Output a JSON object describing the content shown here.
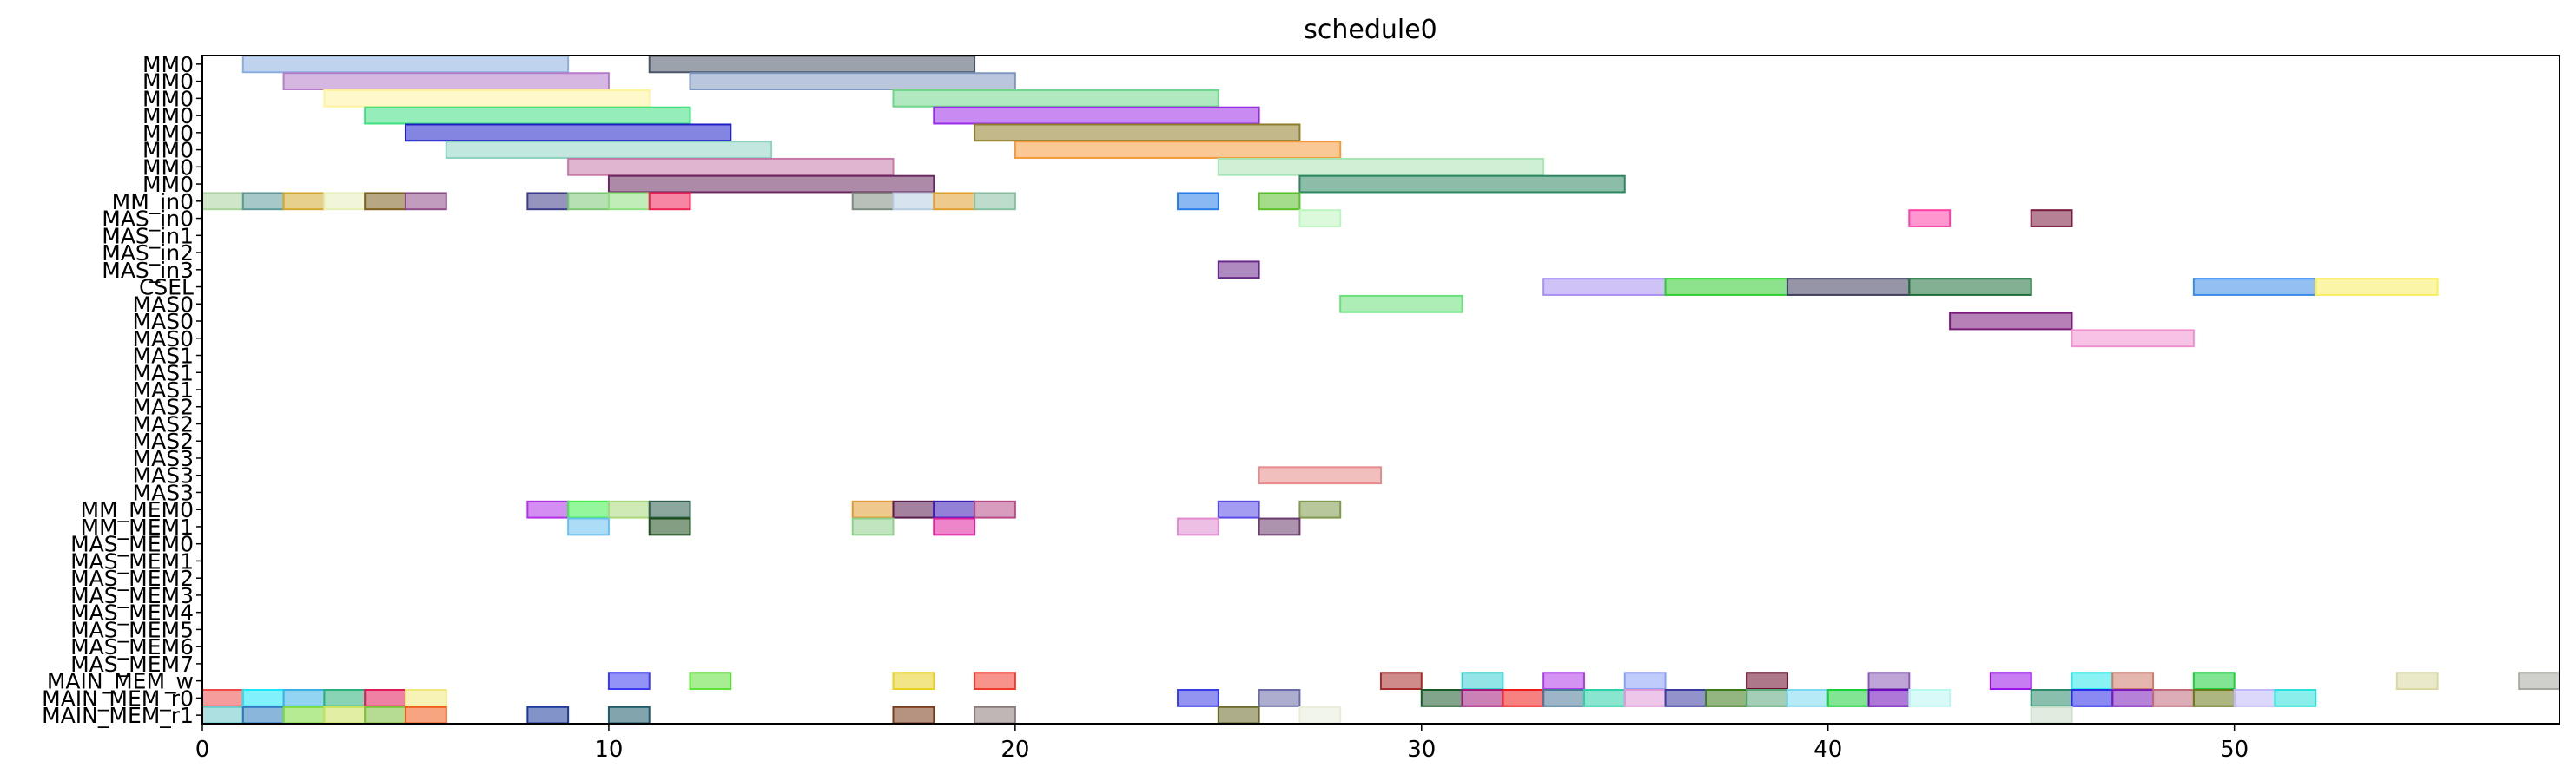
{
  "chart_data": {
    "type": "gantt",
    "title": "schedule0",
    "xlim": [
      0,
      58
    ],
    "x_ticks": [
      0,
      10,
      20,
      30,
      40,
      50
    ],
    "grid": false,
    "rows": [
      "MM0",
      "MM0",
      "MM0",
      "MM0",
      "MM0",
      "MM0",
      "MM0",
      "MM0",
      "MM_in0",
      "MAS_in0",
      "MAS_in1",
      "MAS_in2",
      "MAS_in3",
      "CSEL",
      "MAS0",
      "MAS0",
      "MAS0",
      "MAS1",
      "MAS1",
      "MAS1",
      "MAS2",
      "MAS2",
      "MAS2",
      "MAS3",
      "MAS3",
      "MAS3",
      "MM_MEM0",
      "MM_MEM1",
      "MAS_MEM0",
      "MAS_MEM1",
      "MAS_MEM2",
      "MAS_MEM3",
      "MAS_MEM4",
      "MAS_MEM5",
      "MAS_MEM6",
      "MAS_MEM7",
      "MAIN_MEM_w",
      "MAIN_MEM_r0",
      "MAIN_MEM_r1"
    ],
    "tasks": [
      {
        "row": 0,
        "start": 1,
        "end": 9,
        "color": "#8aaee0"
      },
      {
        "row": 0,
        "start": 11,
        "end": 19,
        "color": "#4a5568"
      },
      {
        "row": 1,
        "start": 2,
        "end": 10,
        "color": "#b57cc9"
      },
      {
        "row": 1,
        "start": 12,
        "end": 20,
        "color": "#7f97bf"
      },
      {
        "row": 2,
        "start": 3,
        "end": 11,
        "color": "#fff3a0"
      },
      {
        "row": 2,
        "start": 17,
        "end": 25,
        "color": "#6fd68a"
      },
      {
        "row": 3,
        "start": 4,
        "end": 12,
        "color": "#3ee07f"
      },
      {
        "row": 3,
        "start": 18,
        "end": 26,
        "color": "#9a2be8"
      },
      {
        "row": 4,
        "start": 5,
        "end": 13,
        "color": "#1f1fc8"
      },
      {
        "row": 4,
        "start": 19,
        "end": 27,
        "color": "#8f7d28"
      },
      {
        "row": 5,
        "start": 6,
        "end": 14,
        "color": "#8ed3c2"
      },
      {
        "row": 5,
        "start": 20,
        "end": 28,
        "color": "#f59a3c"
      },
      {
        "row": 6,
        "start": 9,
        "end": 17,
        "color": "#c778a8"
      },
      {
        "row": 6,
        "start": 25,
        "end": 33,
        "color": "#a9e4b4"
      },
      {
        "row": 7,
        "start": 10,
        "end": 18,
        "color": "#6a2a5e"
      },
      {
        "row": 7,
        "start": 27,
        "end": 35,
        "color": "#2e8660"
      },
      {
        "row": 8,
        "start": 0,
        "end": 1,
        "color": "#a8d39a"
      },
      {
        "row": 8,
        "start": 1,
        "end": 2,
        "color": "#5f9a9a"
      },
      {
        "row": 8,
        "start": 2,
        "end": 3,
        "color": "#d4a82e"
      },
      {
        "row": 8,
        "start": 3,
        "end": 4,
        "color": "#e6efb8"
      },
      {
        "row": 8,
        "start": 4,
        "end": 5,
        "color": "#7d5f1e"
      },
      {
        "row": 8,
        "start": 5,
        "end": 6,
        "color": "#8e4b88"
      },
      {
        "row": 8,
        "start": 8,
        "end": 9,
        "color": "#3c3c8a"
      },
      {
        "row": 8,
        "start": 9,
        "end": 10,
        "color": "#7cc776"
      },
      {
        "row": 8,
        "start": 10,
        "end": 11,
        "color": "#8ee07e"
      },
      {
        "row": 8,
        "start": 11,
        "end": 12,
        "color": "#ee2255"
      },
      {
        "row": 8,
        "start": 16,
        "end": 17,
        "color": "#7d8c80"
      },
      {
        "row": 8,
        "start": 17,
        "end": 18,
        "color": "#b7cce0"
      },
      {
        "row": 8,
        "start": 18,
        "end": 19,
        "color": "#e0a030"
      },
      {
        "row": 8,
        "start": 19,
        "end": 20,
        "color": "#86c0a0"
      },
      {
        "row": 8,
        "start": 24,
        "end": 25,
        "color": "#2a7de8"
      },
      {
        "row": 8,
        "start": 26,
        "end": 27,
        "color": "#5ac02a"
      },
      {
        "row": 9,
        "start": 27,
        "end": 28,
        "color": "#bdf5c0"
      },
      {
        "row": 9,
        "start": 42,
        "end": 43,
        "color": "#ff3fa8"
      },
      {
        "row": 9,
        "start": 45,
        "end": 46,
        "color": "#7a1a3e"
      },
      {
        "row": 12,
        "start": 25,
        "end": 26,
        "color": "#6a2a8a"
      },
      {
        "row": 13,
        "start": 33,
        "end": 36,
        "color": "#a890f0"
      },
      {
        "row": 13,
        "start": 36,
        "end": 39,
        "color": "#2ecc2e"
      },
      {
        "row": 13,
        "start": 39,
        "end": 42,
        "color": "#3e3e5e"
      },
      {
        "row": 13,
        "start": 42,
        "end": 45,
        "color": "#1e6e3a"
      },
      {
        "row": 13,
        "start": 49,
        "end": 52,
        "color": "#3a8ae8"
      },
      {
        "row": 13,
        "start": 52,
        "end": 55,
        "color": "#f8ee5e"
      },
      {
        "row": 14,
        "start": 28,
        "end": 31,
        "color": "#6ae07a"
      },
      {
        "row": 15,
        "start": 43,
        "end": 46,
        "color": "#7a1a7a"
      },
      {
        "row": 16,
        "start": 46,
        "end": 49,
        "color": "#f090d0"
      },
      {
        "row": 24,
        "start": 26,
        "end": 29,
        "color": "#e88a8a"
      },
      {
        "row": 26,
        "start": 8,
        "end": 9,
        "color": "#b030e8"
      },
      {
        "row": 26,
        "start": 9,
        "end": 10,
        "color": "#3ef04a"
      },
      {
        "row": 26,
        "start": 10,
        "end": 11,
        "color": "#a8d878"
      },
      {
        "row": 26,
        "start": 11,
        "end": 12,
        "color": "#2e5e4e"
      },
      {
        "row": 26,
        "start": 16,
        "end": 17,
        "color": "#e09a30"
      },
      {
        "row": 26,
        "start": 17,
        "end": 18,
        "color": "#5a1a4e"
      },
      {
        "row": 26,
        "start": 18,
        "end": 19,
        "color": "#3a1ab8"
      },
      {
        "row": 26,
        "start": 19,
        "end": 20,
        "color": "#b84a88"
      },
      {
        "row": 26,
        "start": 25,
        "end": 26,
        "color": "#5a4ae8"
      },
      {
        "row": 26,
        "start": 27,
        "end": 28,
        "color": "#7e9a4a"
      },
      {
        "row": 27,
        "start": 9,
        "end": 10,
        "color": "#6ac0f0"
      },
      {
        "row": 27,
        "start": 11,
        "end": 12,
        "color": "#1e4e1e"
      },
      {
        "row": 27,
        "start": 16,
        "end": 17,
        "color": "#8ed08a"
      },
      {
        "row": 27,
        "start": 18,
        "end": 19,
        "color": "#e020a0"
      },
      {
        "row": 27,
        "start": 24,
        "end": 25,
        "color": "#e08ad0"
      },
      {
        "row": 27,
        "start": 26,
        "end": 27,
        "color": "#6a3a6a"
      },
      {
        "row": 36,
        "start": 10,
        "end": 11,
        "color": "#3a3af0"
      },
      {
        "row": 36,
        "start": 12,
        "end": 13,
        "color": "#5ee03a"
      },
      {
        "row": 36,
        "start": 17,
        "end": 18,
        "color": "#e8d020"
      },
      {
        "row": 36,
        "start": 19,
        "end": 20,
        "color": "#f03a2a"
      },
      {
        "row": 36,
        "start": 29,
        "end": 30,
        "color": "#a82a2a"
      },
      {
        "row": 36,
        "start": 31,
        "end": 32,
        "color": "#3ad0d0"
      },
      {
        "row": 36,
        "start": 33,
        "end": 34,
        "color": "#b03ae8"
      },
      {
        "row": 36,
        "start": 35,
        "end": 36,
        "color": "#8aa0f8"
      },
      {
        "row": 36,
        "start": 38,
        "end": 39,
        "color": "#6a0a2a"
      },
      {
        "row": 36,
        "start": 41,
        "end": 42,
        "color": "#8a5ab8"
      },
      {
        "row": 36,
        "start": 44,
        "end": 45,
        "color": "#9a10e8"
      },
      {
        "row": 36,
        "start": 46,
        "end": 47,
        "color": "#2ae8e8"
      },
      {
        "row": 36,
        "start": 47,
        "end": 48,
        "color": "#d07a6a"
      },
      {
        "row": 36,
        "start": 49,
        "end": 50,
        "color": "#1ad03a"
      },
      {
        "row": 36,
        "start": 54,
        "end": 55,
        "color": "#d8d8a0"
      },
      {
        "row": 36,
        "start": 57,
        "end": 58,
        "color": "#a8a8a0"
      },
      {
        "row": 37,
        "start": 0,
        "end": 1,
        "color": "#f04a4a"
      },
      {
        "row": 37,
        "start": 1,
        "end": 2,
        "color": "#1ae8f8"
      },
      {
        "row": 37,
        "start": 2,
        "end": 3,
        "color": "#3ab0e8"
      },
      {
        "row": 37,
        "start": 3,
        "end": 4,
        "color": "#2ab07a"
      },
      {
        "row": 37,
        "start": 4,
        "end": 5,
        "color": "#e01a5a"
      },
      {
        "row": 37,
        "start": 5,
        "end": 6,
        "color": "#f0e87a"
      },
      {
        "row": 37,
        "start": 24,
        "end": 25,
        "color": "#3a3ae8"
      },
      {
        "row": 37,
        "start": 26,
        "end": 27,
        "color": "#6a6aa8"
      },
      {
        "row": 37,
        "start": 30,
        "end": 31,
        "color": "#1a5a2a"
      },
      {
        "row": 37,
        "start": 31,
        "end": 32,
        "color": "#a01a7a"
      },
      {
        "row": 37,
        "start": 32,
        "end": 33,
        "color": "#f01a1a"
      },
      {
        "row": 37,
        "start": 33,
        "end": 34,
        "color": "#4a7a9a"
      },
      {
        "row": 37,
        "start": 34,
        "end": 35,
        "color": "#2ad0a8"
      },
      {
        "row": 37,
        "start": 35,
        "end": 36,
        "color": "#e098d8"
      },
      {
        "row": 37,
        "start": 36,
        "end": 37,
        "color": "#3a3aa0"
      },
      {
        "row": 37,
        "start": 37,
        "end": 38,
        "color": "#3a7a1a"
      },
      {
        "row": 37,
        "start": 38,
        "end": 39,
        "color": "#5aa87a"
      },
      {
        "row": 37,
        "start": 39,
        "end": 40,
        "color": "#7ad8f0"
      },
      {
        "row": 37,
        "start": 40,
        "end": 41,
        "color": "#1ad03a"
      },
      {
        "row": 37,
        "start": 41,
        "end": 42,
        "color": "#6a0ab8"
      },
      {
        "row": 37,
        "start": 42,
        "end": 43,
        "color": "#b8f8f0"
      },
      {
        "row": 37,
        "start": 45,
        "end": 46,
        "color": "#2a8a6a"
      },
      {
        "row": 37,
        "start": 46,
        "end": 47,
        "color": "#2a2ae8"
      },
      {
        "row": 37,
        "start": 47,
        "end": 48,
        "color": "#7a1ab8"
      },
      {
        "row": 37,
        "start": 48,
        "end": 49,
        "color": "#c06a7a"
      },
      {
        "row": 37,
        "start": 49,
        "end": 50,
        "color": "#6a7a1a"
      },
      {
        "row": 37,
        "start": 50,
        "end": 51,
        "color": "#c0b8f8"
      },
      {
        "row": 37,
        "start": 51,
        "end": 52,
        "color": "#2ae0d8"
      },
      {
        "row": 38,
        "start": 0,
        "end": 1,
        "color": "#6ac8c8"
      },
      {
        "row": 38,
        "start": 1,
        "end": 2,
        "color": "#2a7ac0"
      },
      {
        "row": 38,
        "start": 2,
        "end": 3,
        "color": "#7ad83a"
      },
      {
        "row": 38,
        "start": 3,
        "end": 4,
        "color": "#c8e05a"
      },
      {
        "row": 38,
        "start": 4,
        "end": 5,
        "color": "#7ac03a"
      },
      {
        "row": 38,
        "start": 5,
        "end": 6,
        "color": "#f05a1a"
      },
      {
        "row": 38,
        "start": 8,
        "end": 9,
        "color": "#1a3a9a"
      },
      {
        "row": 38,
        "start": 10,
        "end": 11,
        "color": "#1a5a6a"
      },
      {
        "row": 38,
        "start": 17,
        "end": 18,
        "color": "#7a3a1a"
      },
      {
        "row": 38,
        "start": 19,
        "end": 20,
        "color": "#8a7a7a"
      },
      {
        "row": 38,
        "start": 25,
        "end": 26,
        "color": "#6a6a2a"
      },
      {
        "row": 38,
        "start": 27,
        "end": 28,
        "color": "#e8ecd8"
      },
      {
        "row": 38,
        "start": 45,
        "end": 46,
        "color": "#c8dcc8"
      }
    ]
  }
}
